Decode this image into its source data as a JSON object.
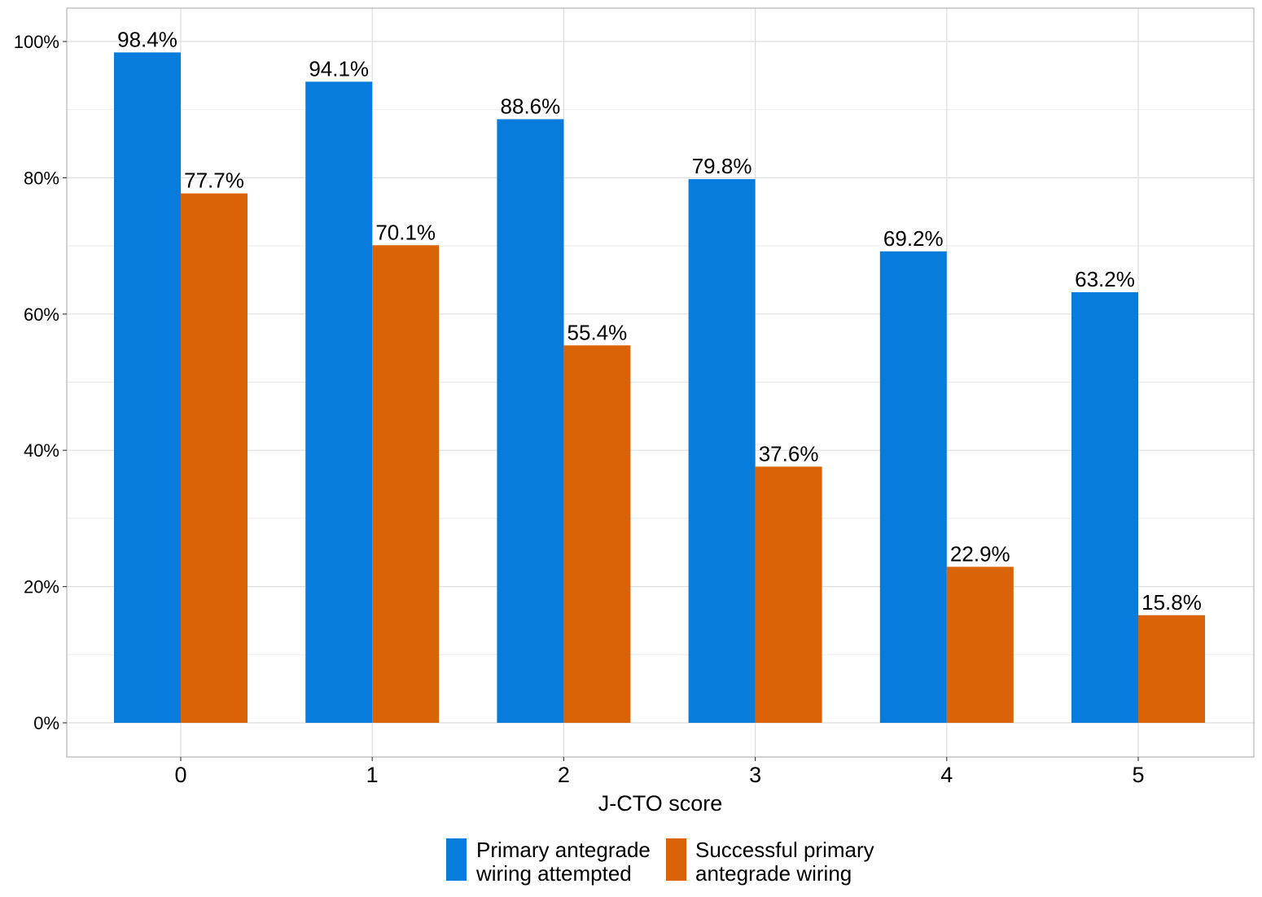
{
  "chart_data": {
    "type": "bar",
    "title": "",
    "xlabel": "J-CTO score",
    "ylabel": "",
    "categories": [
      "0",
      "1",
      "2",
      "3",
      "4",
      "5"
    ],
    "series": [
      {
        "name": "Primary antegrade wiring attempted",
        "values": [
          98.4,
          94.1,
          88.6,
          79.8,
          69.2,
          63.2
        ],
        "labels": [
          "98.4%",
          "94.1%",
          "88.6%",
          "79.8%",
          "69.2%",
          "63.2%"
        ],
        "color": "#077cdc"
      },
      {
        "name": "Successful primary antegrade wiring",
        "values": [
          77.7,
          70.1,
          55.4,
          37.6,
          22.9,
          15.8
        ],
        "labels": [
          "77.7%",
          "70.1%",
          "55.4%",
          "37.6%",
          "22.9%",
          "15.8%"
        ],
        "color": "#db6307"
      }
    ],
    "ylim": [
      -5,
      105
    ],
    "yticks": [
      0,
      20,
      40,
      60,
      80,
      100
    ],
    "ytick_labels": [
      "0%",
      "20%",
      "40%",
      "60%",
      "80%",
      "100%"
    ],
    "grid": true,
    "legend": {
      "placement": "bottom",
      "items": [
        {
          "line1": "Primary antegrade",
          "line2": "wiring attempted"
        },
        {
          "line1": "Successful primary",
          "line2": "antegrade wiring"
        }
      ]
    }
  }
}
